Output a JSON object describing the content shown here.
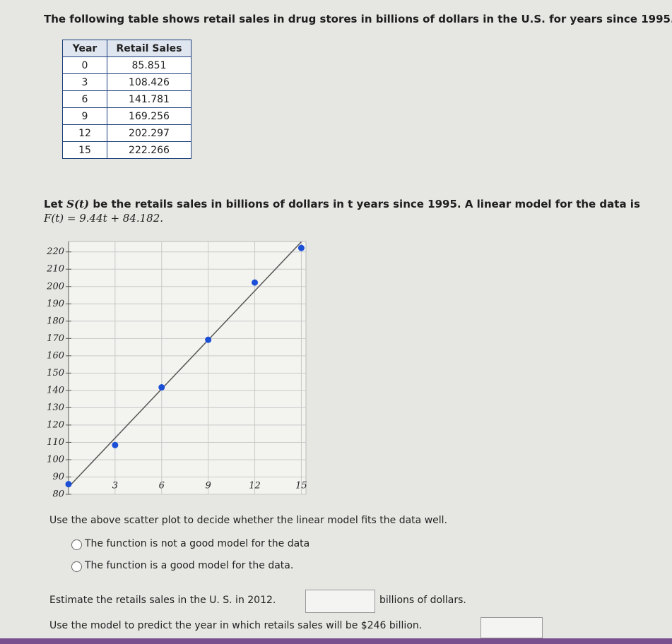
{
  "intro": "The following table shows retail sales in drug stores in billions of dollars in the U.S. for years since 1995.",
  "table": {
    "header": [
      "Year",
      "Retail Sales"
    ],
    "rows": [
      [
        0,
        85.851
      ],
      [
        3,
        108.426
      ],
      [
        6,
        141.781
      ],
      [
        9,
        169.256
      ],
      [
        12,
        202.297
      ],
      [
        15,
        222.266
      ]
    ]
  },
  "model_text": [
    "Let",
    "S(t)",
    "be the retails sales in billions of dollars in t years since 1995. A linear model for the data is",
    "F(t) = 9.44t + 84.182."
  ],
  "chart_data": {
    "type": "scatter",
    "x": [
      0,
      3,
      6,
      9,
      12,
      15
    ],
    "values": [
      85.851,
      108.426,
      141.781,
      169.256,
      202.297,
      222.266
    ],
    "color": "#1a4fd6",
    "fit_line": {
      "x": [
        0,
        15
      ],
      "values": [
        84.182,
        225.782
      ],
      "color": "#555555"
    },
    "xlim": [
      0,
      15.3
    ],
    "ylim": [
      80,
      226
    ],
    "xticks": [
      3,
      6,
      9,
      12,
      15
    ],
    "yticks": [
      80,
      90,
      100,
      110,
      120,
      130,
      140,
      150,
      160,
      170,
      180,
      190,
      200,
      210,
      220
    ],
    "grid": true
  },
  "question": "Use the above scatter plot to decide whether the linear model fits the data well.",
  "options": [
    "The function is not a good model for the data",
    "The function is a good model for the data."
  ],
  "estimate": {
    "prompt": "Estimate the retails sales in the U. S. in 2012.",
    "unit": "billions of dollars."
  },
  "predict": "Use the model to predict the year in which retails sales will be $246 billion."
}
